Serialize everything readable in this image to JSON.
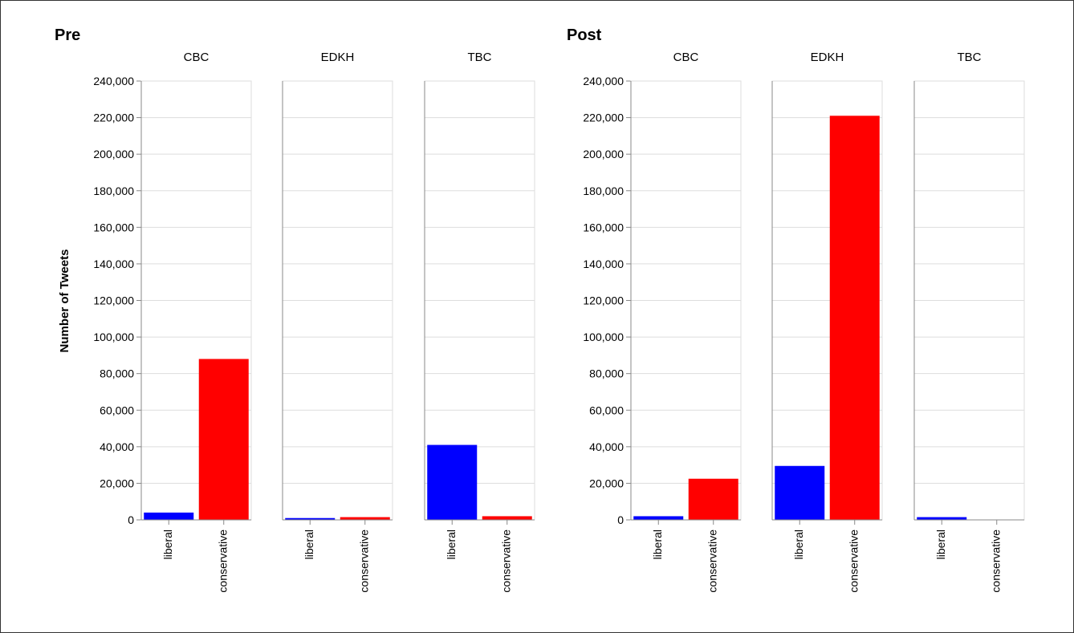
{
  "chart_data": {
    "type": "bar",
    "ylabel": "Number of Tweets",
    "ylim": [
      0,
      240000
    ],
    "y_ticks": [
      "0",
      "20,000",
      "40,000",
      "60,000",
      "80,000",
      "100,000",
      "120,000",
      "140,000",
      "160,000",
      "180,000",
      "200,000",
      "220,000",
      "240,000"
    ],
    "categories": [
      "liberal",
      "conservative"
    ],
    "colors": {
      "liberal": "#0000ff",
      "conservative": "#ff0000"
    },
    "grid": true,
    "groups": [
      {
        "title": "Pre",
        "facets": [
          {
            "title": "CBC",
            "values": [
              4000,
              88000
            ]
          },
          {
            "title": "EDKH",
            "values": [
              1000,
              1500
            ]
          },
          {
            "title": "TBC",
            "values": [
              41000,
              2000
            ]
          }
        ]
      },
      {
        "title": "Post",
        "facets": [
          {
            "title": "CBC",
            "values": [
              2000,
              22500
            ]
          },
          {
            "title": "EDKH",
            "values": [
              29500,
              221000
            ]
          },
          {
            "title": "TBC",
            "values": [
              1500,
              0
            ]
          }
        ]
      }
    ]
  }
}
